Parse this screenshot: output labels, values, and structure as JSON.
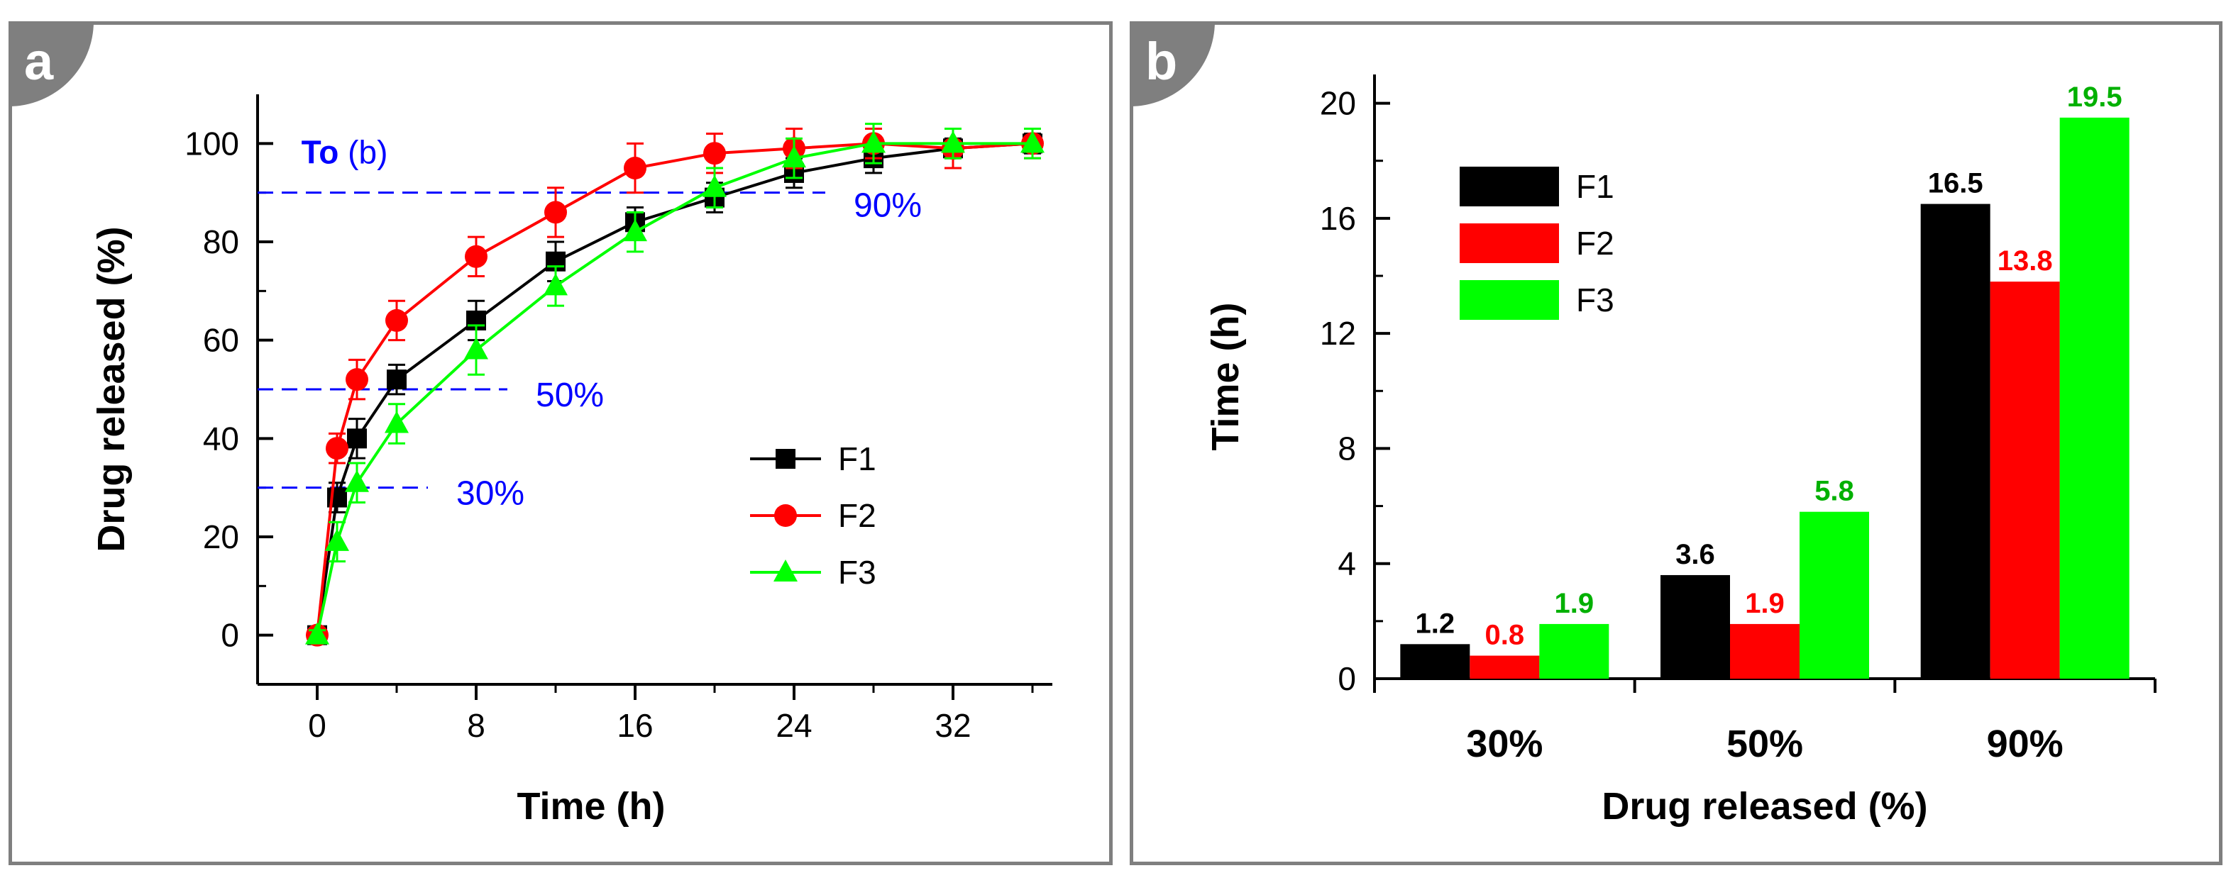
{
  "chart_data": [
    {
      "panel_label": "a",
      "type": "line",
      "xlabel": "Time (h)",
      "ylabel": "Drug released (%)",
      "xlim": [
        -3,
        37
      ],
      "ylim": [
        -10,
        110
      ],
      "xticks": [
        0,
        8,
        16,
        24,
        32
      ],
      "yticks": [
        0,
        20,
        40,
        60,
        80,
        100
      ],
      "grid": false,
      "legend_position": "center-right",
      "series": [
        {
          "name": "F1",
          "color": "#000000",
          "marker": "square",
          "x": [
            0,
            1,
            2,
            4,
            8,
            12,
            16,
            20,
            24,
            28,
            32,
            36
          ],
          "y": [
            0,
            28,
            40,
            52,
            64,
            76,
            84,
            89,
            94,
            97,
            99,
            100
          ],
          "err": [
            1,
            3,
            4,
            3,
            4,
            4,
            3,
            3,
            3,
            3,
            2,
            2
          ]
        },
        {
          "name": "F2",
          "color": "#ff0000",
          "marker": "circle",
          "x": [
            0,
            1,
            2,
            4,
            8,
            12,
            16,
            20,
            24,
            28,
            32,
            36
          ],
          "y": [
            0,
            38,
            52,
            64,
            77,
            86,
            95,
            98,
            99,
            100,
            99,
            100
          ],
          "err": [
            1,
            3,
            4,
            4,
            4,
            5,
            5,
            4,
            4,
            3,
            4,
            3
          ]
        },
        {
          "name": "F3",
          "color": "#00ff00",
          "marker": "triangle",
          "x": [
            0,
            1,
            2,
            4,
            8,
            12,
            16,
            20,
            24,
            28,
            32,
            36
          ],
          "y": [
            0,
            19,
            31,
            43,
            58,
            71,
            82,
            91,
            97,
            100,
            100,
            100
          ],
          "err": [
            1,
            4,
            4,
            4,
            5,
            4,
            4,
            4,
            4,
            4,
            3,
            3
          ]
        }
      ],
      "reference_lines": [
        {
          "y": 90,
          "label": "90%",
          "x_end": 24
        },
        {
          "y": 50,
          "label": "50%",
          "x_end": 8
        },
        {
          "y": 30,
          "label": "30%",
          "x_end": 4
        }
      ],
      "annotation": {
        "bold": "To",
        "rest": " (b)"
      },
      "annotation_color": "#0000ff"
    },
    {
      "panel_label": "b",
      "type": "bar",
      "xlabel": "Drug released (%)",
      "ylabel": "Time (h)",
      "categories": [
        "30%",
        "50%",
        "90%"
      ],
      "ylim": [
        0,
        21
      ],
      "yticks": [
        0,
        4,
        8,
        12,
        16,
        20
      ],
      "grid": false,
      "legend_position": "top-left",
      "series": [
        {
          "name": "F1",
          "color": "#000000",
          "label_color": "#000000",
          "values": [
            1.2,
            3.6,
            16.5
          ]
        },
        {
          "name": "F2",
          "color": "#ff0000",
          "label_color": "#ff0000",
          "values": [
            0.8,
            1.9,
            13.8
          ]
        },
        {
          "name": "F3",
          "color": "#00ff00",
          "label_color": "#00b000",
          "values": [
            1.9,
            5.8,
            19.5
          ]
        }
      ]
    }
  ]
}
